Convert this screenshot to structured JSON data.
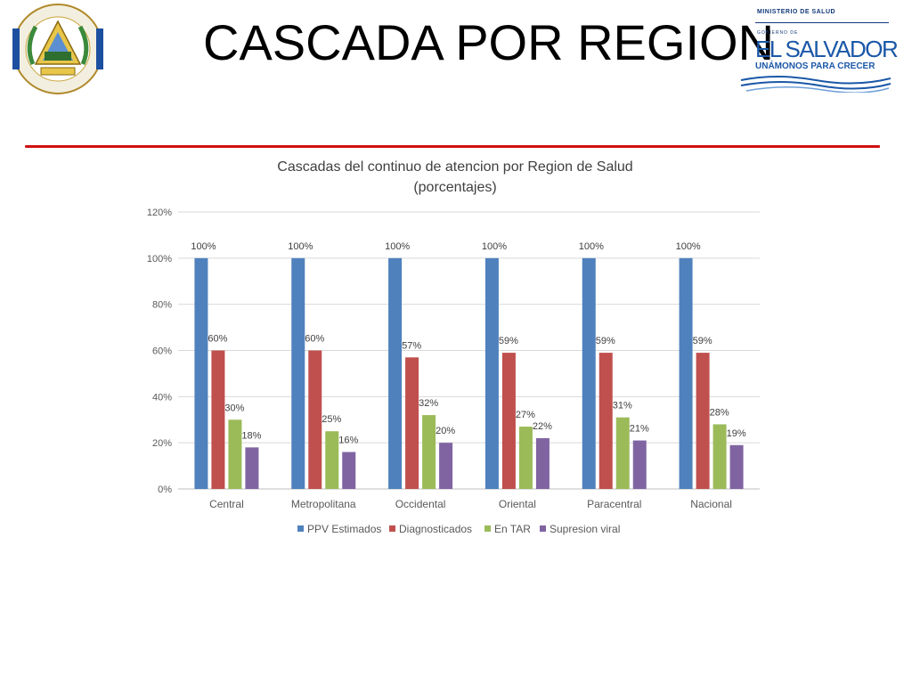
{
  "slide": {
    "title": "CASCADA POR REGION",
    "seal_text": "REPUBLICA DE EL SALVADOR EN LA AMERICA CENTRAL",
    "logo": {
      "line1": "MINISTERIO DE SALUD",
      "line2": "GOBIERNO DE",
      "line3": "EL SALVADOR",
      "line4": "UNÁMONOS PARA CRECER"
    },
    "colors": {
      "rule": "#d01010",
      "logo_blue": "#1b58a8"
    }
  },
  "chart_data": {
    "type": "bar",
    "title": "Cascadas del continuo de atencion por Region de Salud",
    "subtitle": "(porcentajes)",
    "categories": [
      "Central",
      "Metropolitana",
      "Occidental",
      "Oriental",
      "Paracentral",
      "Nacional"
    ],
    "series": [
      {
        "name": "PPV Estimados",
        "color": "#4f81bd",
        "values": [
          100,
          100,
          100,
          100,
          100,
          100
        ],
        "labels": [
          "100%",
          "100%",
          "100%",
          "100%",
          "100%",
          "100%"
        ]
      },
      {
        "name": "Diagnosticados",
        "color": "#c0504d",
        "values": [
          60,
          60,
          57,
          59,
          59,
          59
        ],
        "labels": [
          "60%",
          "60%",
          "57%",
          "59%",
          "59%",
          "59%"
        ]
      },
      {
        "name": "En TAR",
        "color": "#9bbb59",
        "values": [
          30,
          25,
          32,
          27,
          31,
          28
        ],
        "labels": [
          "30%",
          "25%",
          "32%",
          "27%",
          "31%",
          "28%"
        ]
      },
      {
        "name": "Supresion viral",
        "color": "#8064a2",
        "values": [
          18,
          16,
          20,
          22,
          21,
          19
        ],
        "labels": [
          "18%",
          "16%",
          "20%",
          "22%",
          "21%",
          "19%"
        ]
      }
    ],
    "y_ticks": [
      "0%",
      "20%",
      "40%",
      "60%",
      "80%",
      "100%",
      "120%"
    ],
    "ylim": [
      0,
      120
    ],
    "grid": true,
    "legend_position": "bottom"
  }
}
